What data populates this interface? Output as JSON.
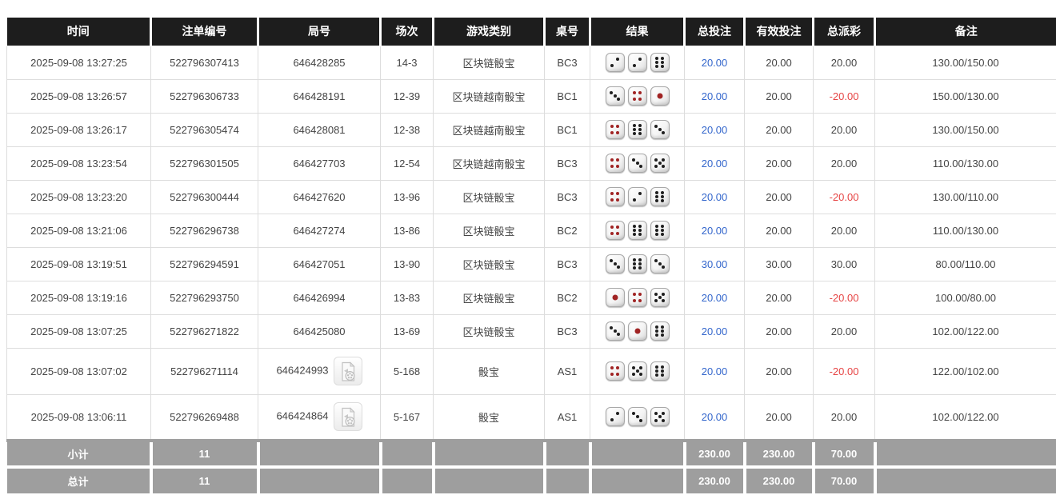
{
  "colors": {
    "header_bg": "#1d1d1d",
    "footer_bg": "#9e9e9e",
    "bet_amount_blue": "#3366cc",
    "negative_red": "#e64444",
    "dice_red_pip": "#a02323",
    "dice_black_pip": "#1f1f1f"
  },
  "table": {
    "columns": [
      "时间",
      "注单编号",
      "局号",
      "场次",
      "游戏类别",
      "桌号",
      "结果",
      "总投注",
      "有效投注",
      "总派彩",
      "备注"
    ],
    "dice_red_values": [
      1,
      4
    ],
    "rows": [
      {
        "time": "2025-09-08 13:27:25",
        "bet_id": "522796307413",
        "round_id": "646428285",
        "has_video": false,
        "session": "14-3",
        "game_type": "区块链骰宝",
        "table_no": "BC3",
        "dice": [
          2,
          2,
          6
        ],
        "total_bet": "20.00",
        "valid_bet": "20.00",
        "total_payout": "20.00",
        "remark": "130.00/150.00"
      },
      {
        "time": "2025-09-08 13:26:57",
        "bet_id": "522796306733",
        "round_id": "646428191",
        "has_video": false,
        "session": "12-39",
        "game_type": "区块链越南骰宝",
        "table_no": "BC1",
        "dice": [
          3,
          4,
          1
        ],
        "total_bet": "20.00",
        "valid_bet": "20.00",
        "total_payout": "-20.00",
        "remark": "150.00/130.00"
      },
      {
        "time": "2025-09-08 13:26:17",
        "bet_id": "522796305474",
        "round_id": "646428081",
        "has_video": false,
        "session": "12-38",
        "game_type": "区块链越南骰宝",
        "table_no": "BC1",
        "dice": [
          4,
          6,
          3
        ],
        "total_bet": "20.00",
        "valid_bet": "20.00",
        "total_payout": "20.00",
        "remark": "130.00/150.00"
      },
      {
        "time": "2025-09-08 13:23:54",
        "bet_id": "522796301505",
        "round_id": "646427703",
        "has_video": false,
        "session": "12-54",
        "game_type": "区块链越南骰宝",
        "table_no": "BC3",
        "dice": [
          4,
          3,
          5
        ],
        "total_bet": "20.00",
        "valid_bet": "20.00",
        "total_payout": "20.00",
        "remark": "110.00/130.00"
      },
      {
        "time": "2025-09-08 13:23:20",
        "bet_id": "522796300444",
        "round_id": "646427620",
        "has_video": false,
        "session": "13-96",
        "game_type": "区块链骰宝",
        "table_no": "BC3",
        "dice": [
          4,
          2,
          6
        ],
        "total_bet": "20.00",
        "valid_bet": "20.00",
        "total_payout": "-20.00",
        "remark": "130.00/110.00"
      },
      {
        "time": "2025-09-08 13:21:06",
        "bet_id": "522796296738",
        "round_id": "646427274",
        "has_video": false,
        "session": "13-86",
        "game_type": "区块链骰宝",
        "table_no": "BC2",
        "dice": [
          4,
          6,
          6
        ],
        "total_bet": "20.00",
        "valid_bet": "20.00",
        "total_payout": "20.00",
        "remark": "110.00/130.00"
      },
      {
        "time": "2025-09-08 13:19:51",
        "bet_id": "522796294591",
        "round_id": "646427051",
        "has_video": false,
        "session": "13-90",
        "game_type": "区块链骰宝",
        "table_no": "BC3",
        "dice": [
          3,
          6,
          3
        ],
        "total_bet": "30.00",
        "valid_bet": "30.00",
        "total_payout": "30.00",
        "remark": "80.00/110.00"
      },
      {
        "time": "2025-09-08 13:19:16",
        "bet_id": "522796293750",
        "round_id": "646426994",
        "has_video": false,
        "session": "13-83",
        "game_type": "区块链骰宝",
        "table_no": "BC2",
        "dice": [
          1,
          4,
          5
        ],
        "total_bet": "20.00",
        "valid_bet": "20.00",
        "total_payout": "-20.00",
        "remark": "100.00/80.00"
      },
      {
        "time": "2025-09-08 13:07:25",
        "bet_id": "522796271822",
        "round_id": "646425080",
        "has_video": false,
        "session": "13-69",
        "game_type": "区块链骰宝",
        "table_no": "BC3",
        "dice": [
          3,
          1,
          6
        ],
        "total_bet": "20.00",
        "valid_bet": "20.00",
        "total_payout": "20.00",
        "remark": "102.00/122.00"
      },
      {
        "time": "2025-09-08 13:07:02",
        "bet_id": "522796271114",
        "round_id": "646424993",
        "has_video": true,
        "session": "5-168",
        "game_type": "骰宝",
        "table_no": "AS1",
        "dice": [
          4,
          5,
          6
        ],
        "total_bet": "20.00",
        "valid_bet": "20.00",
        "total_payout": "-20.00",
        "remark": "122.00/102.00"
      },
      {
        "time": "2025-09-08 13:06:11",
        "bet_id": "522796269488",
        "round_id": "646424864",
        "has_video": true,
        "session": "5-167",
        "game_type": "骰宝",
        "table_no": "AS1",
        "dice": [
          2,
          3,
          5
        ],
        "total_bet": "20.00",
        "valid_bet": "20.00",
        "total_payout": "20.00",
        "remark": "102.00/122.00"
      }
    ],
    "subtotal": {
      "label": "小计",
      "count": "11",
      "total_bet": "230.00",
      "valid_bet": "230.00",
      "total_payout": "70.00"
    },
    "total": {
      "label": "总计",
      "count": "11",
      "total_bet": "230.00",
      "valid_bet": "230.00",
      "total_payout": "70.00"
    }
  }
}
